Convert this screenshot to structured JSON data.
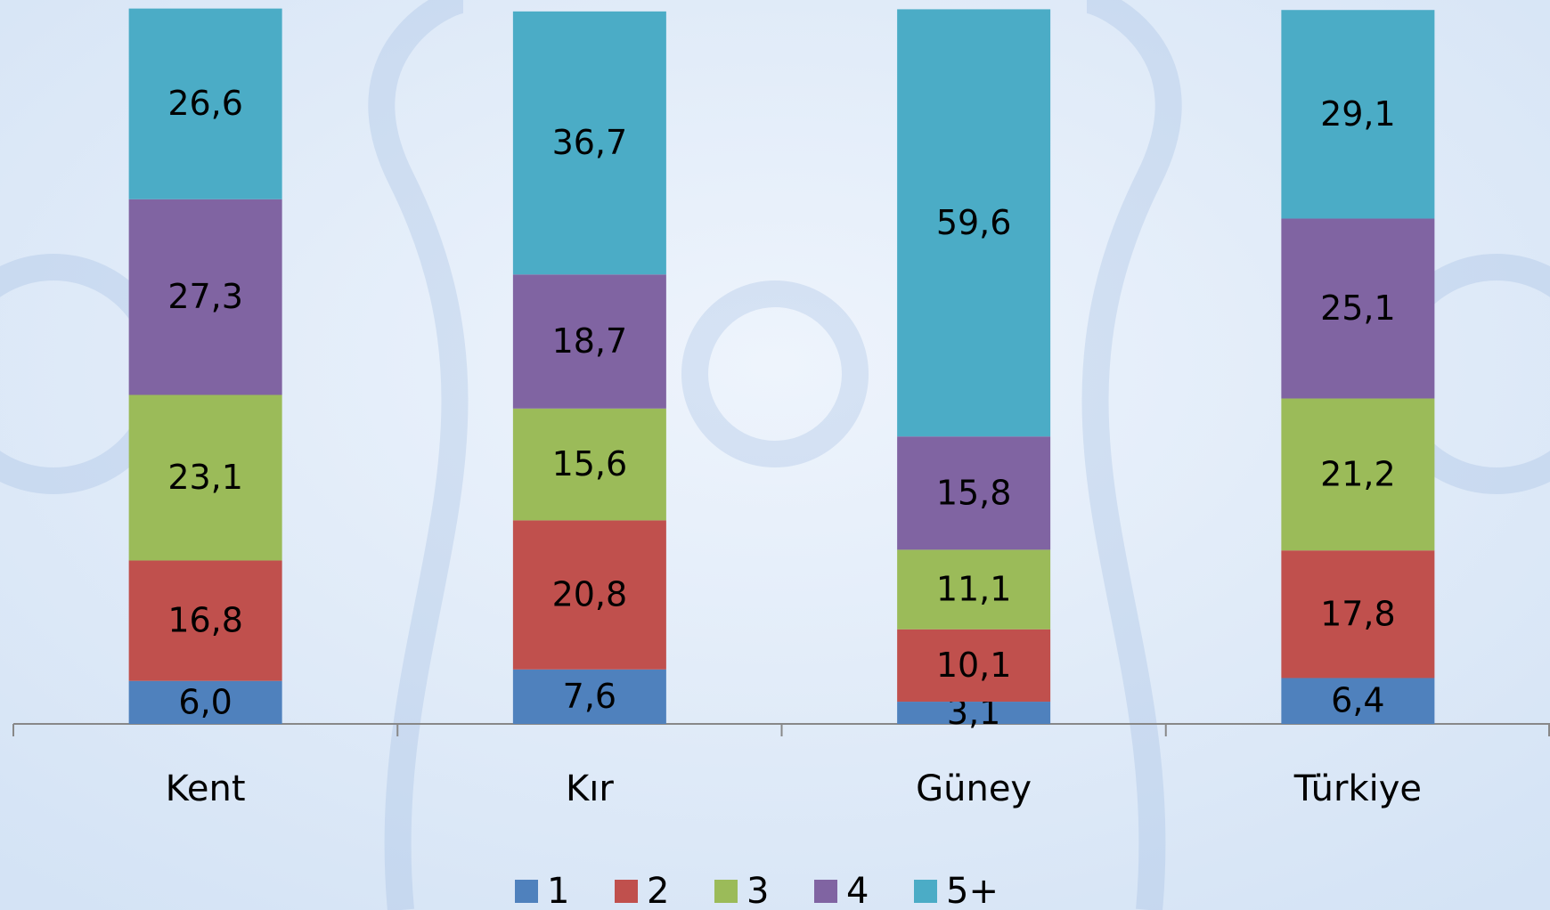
{
  "chart_data": {
    "type": "stacked_bar",
    "categories": [
      "Kent",
      "Kır",
      "Güney",
      "Türkiye"
    ],
    "series": [
      {
        "name": "1",
        "color": "#4f81bd",
        "values": [
          6.0,
          7.6,
          3.1,
          6.4
        ],
        "value_labels": [
          "6,0",
          "7,6",
          "3,1",
          "6,4"
        ]
      },
      {
        "name": "2",
        "color": "#c0504d",
        "values": [
          16.8,
          20.8,
          10.1,
          17.8
        ],
        "value_labels": [
          "16,8",
          "20,8",
          "10,1",
          "17,8"
        ]
      },
      {
        "name": "3",
        "color": "#9bbb59",
        "values": [
          23.1,
          15.6,
          11.1,
          21.2
        ],
        "value_labels": [
          "23,1",
          "15,6",
          "11,1",
          "21,2"
        ]
      },
      {
        "name": "4",
        "color": "#8064a2",
        "values": [
          27.3,
          18.7,
          15.8,
          25.1
        ],
        "value_labels": [
          "27,3",
          "18,7",
          "15,8",
          "25,1"
        ]
      },
      {
        "name": "5+",
        "color": "#4bacc6",
        "values": [
          26.6,
          36.7,
          59.6,
          29.1
        ],
        "value_labels": [
          "26,6",
          "36,7",
          "59,6",
          "29,1"
        ]
      }
    ],
    "ylim": [
      0,
      100
    ],
    "legend": "bottom"
  }
}
